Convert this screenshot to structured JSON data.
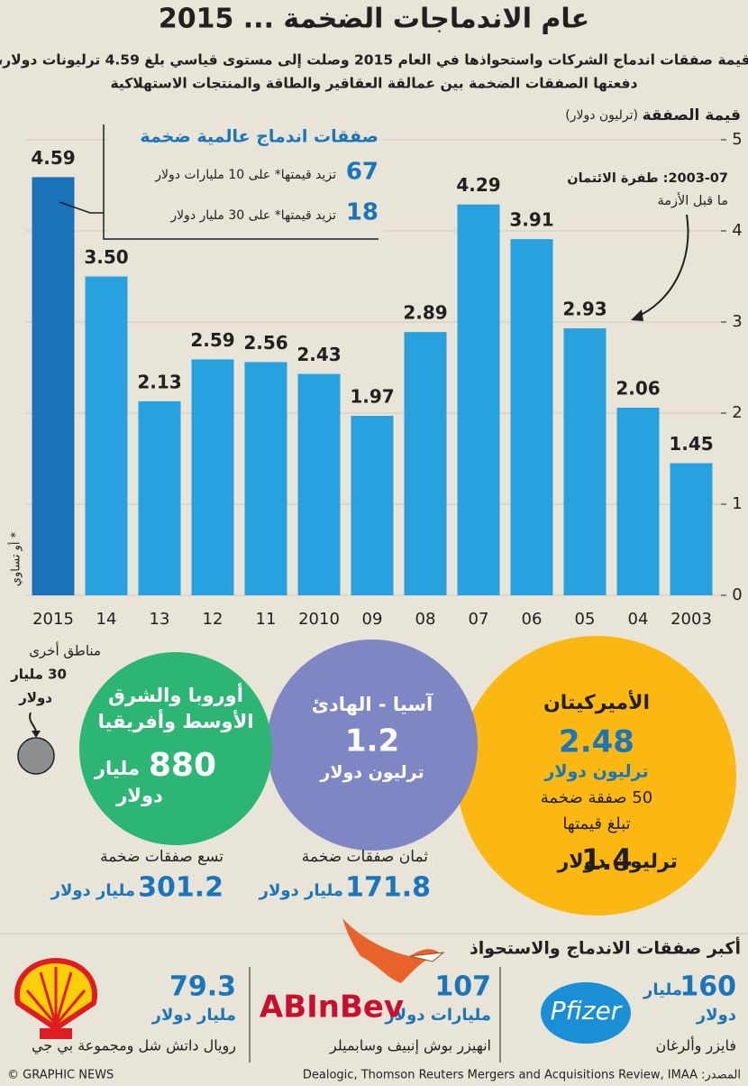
{
  "chart_data": {
    "type": "bar",
    "title": "عام الاندماجات الضخمة ... 2015",
    "subtitle": [
      "قيمة صفقات اندماج الشركات واستحواذها في العام 2015 وصلت إلى مستوى قياسي بلغ 4.59 ترليونات دولار،",
      "دفعتها الصفقات الضخمة بين عمالقة العقاقير والطاقة والمنتجات الاستهلاكية"
    ],
    "y_axis_label": "قيمة الصفقة",
    "y_axis_unit": "(ترليون دولار)",
    "categories": [
      "2015",
      "14",
      "13",
      "12",
      "11",
      "2010",
      "09",
      "08",
      "07",
      "06",
      "05",
      "04",
      "2003"
    ],
    "values": [
      4.59,
      3.5,
      2.13,
      2.59,
      2.56,
      2.43,
      1.97,
      2.89,
      4.29,
      3.91,
      2.93,
      2.06,
      1.45
    ],
    "value_labels": [
      "4.59",
      "3.50",
      "2.13",
      "2.59",
      "2.56",
      "2.43",
      "1.97",
      "2.89",
      "4.29",
      "3.91",
      "2.93",
      "2.06",
      "1.45"
    ],
    "colors": [
      "#1a73b8",
      "#27a2de",
      "#27a2de",
      "#27a2de",
      "#27a2de",
      "#27a2de",
      "#27a2de",
      "#27a2de",
      "#27a2de",
      "#27a2de",
      "#27a2de",
      "#27a2de",
      "#27a2de"
    ],
    "ylim": [
      0,
      5
    ],
    "yticks": [
      0,
      1,
      2,
      3,
      4,
      5
    ],
    "grid": true,
    "callout": {
      "title": "صفقات اندماج عالمية ضخمة",
      "items": [
        {
          "count": 67,
          "text": "تزيد قيمتها* على 10 مليارات دولار"
        },
        {
          "count": 18,
          "text": "تزيد قيمتها* على 30 مليار دولار"
        }
      ]
    },
    "footnote": "* أو تساوي",
    "annotation": [
      "2003-07: طفرة الائتمان",
      "ما قبل الأزمة"
    ]
  },
  "regions": {
    "americas": {
      "name": "الأميركيتان",
      "value": "2.48",
      "unit": "ترليون دولار",
      "lines": [
        "50 صفقة ضخمة",
        "تبلغ قيمتها"
      ],
      "big_value": "1.4",
      "big_unit": "ترليون دولار"
    },
    "asia": {
      "name": "آسيا - الهادئ",
      "value": "1.2",
      "unit": "ترليون دولار",
      "deals": "ثمان صفقات ضخمة",
      "deals_value": "171.8",
      "deals_unit": "مليار دولار"
    },
    "emea": {
      "name": [
        "أوروبا والشرق",
        "الأوسط وأفريقيا"
      ],
      "value": "880",
      "unit": "مليار",
      "unit2": "دولار",
      "deals": "تسع صفقات ضخمة",
      "deals_value": "301.2",
      "deals_unit": "مليار دولار"
    },
    "other": {
      "name": "مناطق أخرى",
      "value": "30 مليار",
      "unit": "دولار"
    }
  },
  "deals": {
    "title": "أكبر صفقات الاندماج والاستحواذ",
    "items": [
      {
        "value": "160",
        "unit": "مليار",
        "unit2": "دولار",
        "name": "فايزر وألرغان",
        "logo": "Pfizer"
      },
      {
        "value": "107",
        "unit": "مليارات دولار",
        "name": "انهيزر بوش إنبيف وسابميلر",
        "logo": "ABInBev"
      },
      {
        "value": "79.3",
        "unit": "مليار دولار",
        "name": "رويال داتش شل ومجموعة بي جي"
      }
    ]
  },
  "footer": {
    "credit": "© GRAPHIC NEWS",
    "source": "المصدر: Dealogic, Thomson Reuters Mergers and Acquisitions Review, IMAA"
  }
}
